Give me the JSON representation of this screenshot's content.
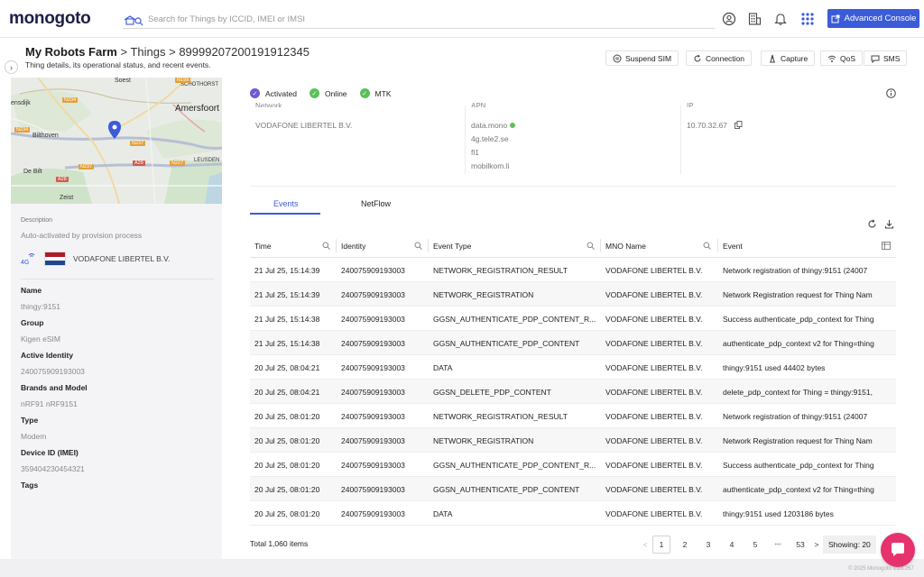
{
  "app": {
    "logo": "monogoto",
    "search_placeholder": "Search for Things by ICCID, IMEI or IMSI",
    "advanced_console": "Advanced Console",
    "icons": [
      "search-icon",
      "account-icon",
      "organization-icon",
      "bell-icon",
      "apps-grid-icon",
      "external-link-icon"
    ]
  },
  "header": {
    "crumb_org": "My Robots Farm",
    "crumb_sep1": ">",
    "crumb_section": "Things",
    "crumb_sep2": ">",
    "crumb_thing": "89999207200191912345",
    "subtitle": "Thing details, its operational status, and recent events.",
    "actions": [
      {
        "label": "Suspend SIM",
        "icon": "pause-circle-icon"
      },
      {
        "label": "Connection",
        "icon": "refresh-icon"
      },
      {
        "label": "Capture",
        "icon": "capture-icon"
      },
      {
        "label": "QoS",
        "icon": "wifi-icon"
      },
      {
        "label": "SMS",
        "icon": "sms-icon"
      }
    ]
  },
  "map": {
    "labels": [
      "Soest",
      "SCHOTHORST",
      "Amersfoort",
      "Bilthoven",
      "De Bilt",
      "Zeist",
      "LEUSDEN",
      "ensdijk"
    ],
    "roads": [
      "N234",
      "N237",
      "N227",
      "A28",
      "N199",
      "N234",
      "N237",
      "A28"
    ]
  },
  "details": {
    "description_label": "Description",
    "description_value": "Auto-activated by provision process",
    "network_badge": "4G",
    "operator": "VODAFONE LIBERTEL B.V.",
    "fields": [
      {
        "label": "Name",
        "value": "thingy:9151"
      },
      {
        "label": "Group",
        "value": "Kigen eSIM"
      },
      {
        "label": "Active Identity",
        "value": "240075909193003"
      },
      {
        "label": "Brands and Model",
        "value": "nRF91 nRF9151"
      },
      {
        "label": "Type",
        "value": "Modem"
      },
      {
        "label": "Device ID (IMEI)",
        "value": "359404230454321"
      },
      {
        "label": "Tags",
        "value": ""
      }
    ]
  },
  "status": {
    "items": [
      {
        "label": "Activated",
        "color": "#6b5bd6"
      },
      {
        "label": "Online",
        "color": "#5cc05a"
      },
      {
        "label": "MTK",
        "color": "#5cc05a"
      }
    ]
  },
  "network_info": {
    "network_header": "Network",
    "network_value": "VODAFONE LIBERTEL B.V.",
    "apn_header": "APN",
    "apns": [
      "data.mono",
      "4g.tele2.se",
      "fl1",
      "mobilkom.li"
    ],
    "ip_header": "IP",
    "ip_value": "10.70.32.67"
  },
  "tabs": [
    {
      "label": "Events",
      "active": true
    },
    {
      "label": "NetFlow",
      "active": false
    }
  ],
  "table": {
    "columns": [
      "Time",
      "Identity",
      "Event Type",
      "MNO Name",
      "Event"
    ],
    "rows": [
      [
        "21 Jul 25, 15:14:39",
        "240075909193003",
        "NETWORK_REGISTRATION_RESULT",
        "VODAFONE LIBERTEL B.V.",
        "Network registration of thingy:9151 (24007"
      ],
      [
        "21 Jul 25, 15:14:39",
        "240075909193003",
        "NETWORK_REGISTRATION",
        "VODAFONE LIBERTEL B.V.",
        "Network Registration request for Thing Nam"
      ],
      [
        "21 Jul 25, 15:14:38",
        "240075909193003",
        "GGSN_AUTHENTICATE_PDP_CONTENT_R...",
        "VODAFONE LIBERTEL B.V.",
        "Success authenticate_pdp_context for Thing"
      ],
      [
        "21 Jul 25, 15:14:38",
        "240075909193003",
        "GGSN_AUTHENTICATE_PDP_CONTENT",
        "VODAFONE LIBERTEL B.V.",
        "authenticate_pdp_context v2 for Thing=thing"
      ],
      [
        "20 Jul 25, 08:04:21",
        "240075909193003",
        "DATA",
        "VODAFONE LIBERTEL B.V.",
        "thingy:9151 used 44402 bytes"
      ],
      [
        "20 Jul 25, 08:04:21",
        "240075909193003",
        "GGSN_DELETE_PDP_CONTENT",
        "VODAFONE LIBERTEL B.V.",
        "delete_pdp_context for Thing = thingy:9151,"
      ],
      [
        "20 Jul 25, 08:01:20",
        "240075909193003",
        "NETWORK_REGISTRATION_RESULT",
        "VODAFONE LIBERTEL B.V.",
        "Network registration of thingy:9151 (24007"
      ],
      [
        "20 Jul 25, 08:01:20",
        "240075909193003",
        "NETWORK_REGISTRATION",
        "VODAFONE LIBERTEL B.V.",
        "Network Registration request for Thing Nam"
      ],
      [
        "20 Jul 25, 08:01:20",
        "240075909193003",
        "GGSN_AUTHENTICATE_PDP_CONTENT_R...",
        "VODAFONE LIBERTEL B.V.",
        "Success authenticate_pdp_context for Thing"
      ],
      [
        "20 Jul 25, 08:01:20",
        "240075909193003",
        "GGSN_AUTHENTICATE_PDP_CONTENT",
        "VODAFONE LIBERTEL B.V.",
        "authenticate_pdp_context v2 for Thing=thing"
      ],
      [
        "20 Jul 25, 08:01:20",
        "240075909193003",
        "DATA",
        "VODAFONE LIBERTEL B.V.",
        "thingy:9151 used 1203186 bytes"
      ]
    ]
  },
  "pagination": {
    "total": "Total 1,060 items",
    "prev": "<",
    "pages": [
      "1",
      "2",
      "3",
      "4",
      "5"
    ],
    "ellipsis": "•••",
    "last": "53",
    "next": ">",
    "showing": "Showing: 20"
  },
  "footer": {
    "copyright": "© 2025 Monogoto 1.23.267"
  }
}
